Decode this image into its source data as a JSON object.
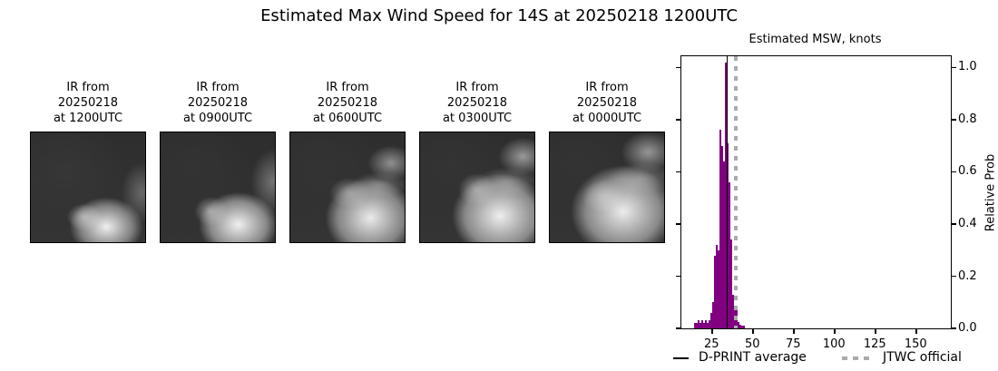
{
  "title": "Estimated Max Wind Speed for 14S at 20250218 1200UTC",
  "panels": [
    {
      "lines": [
        "IR from",
        "20250218",
        "at 1200UTC"
      ]
    },
    {
      "lines": [
        "IR from",
        "20250218",
        "at 0900UTC"
      ]
    },
    {
      "lines": [
        "IR from",
        "20250218",
        "at 0600UTC"
      ]
    },
    {
      "lines": [
        "IR from",
        "20250218",
        "at 0300UTC"
      ]
    },
    {
      "lines": [
        "IR from",
        "20250218",
        "at 0000UTC"
      ]
    }
  ],
  "chart_data": {
    "type": "bar",
    "title": "Estimated MSW, knots",
    "xlabel": "",
    "ylabel": "Relative Prob",
    "xlim": [
      6.5,
      171.5
    ],
    "ylim": [
      0,
      1.043
    ],
    "x_ticks": [
      25,
      50,
      75,
      100,
      125,
      150
    ],
    "y_ticks": [
      "0.0",
      "0.2",
      "0.4",
      "0.6",
      "0.8",
      "1.0"
    ],
    "grid": false,
    "legend_position": "below",
    "bar_color": "#800080",
    "bin_width": 1.1,
    "bins": [
      [
        14.5,
        0.02
      ],
      [
        15.6,
        0.02
      ],
      [
        16.7,
        0.03
      ],
      [
        17.8,
        0.02
      ],
      [
        18.9,
        0.03
      ],
      [
        20.0,
        0.02
      ],
      [
        21.1,
        0.03
      ],
      [
        22.2,
        0.02
      ],
      [
        23.3,
        0.03
      ],
      [
        24.4,
        0.06
      ],
      [
        25.5,
        0.1
      ],
      [
        26.6,
        0.28
      ],
      [
        27.7,
        0.32
      ],
      [
        28.8,
        0.3
      ],
      [
        29.9,
        0.76
      ],
      [
        31.0,
        0.7
      ],
      [
        32.1,
        0.64
      ],
      [
        33.2,
        1.02
      ],
      [
        34.3,
        0.71
      ],
      [
        35.4,
        0.56
      ],
      [
        36.5,
        0.34
      ],
      [
        37.6,
        0.13
      ],
      [
        38.7,
        0.075
      ],
      [
        39.8,
        0.07
      ],
      [
        40.9,
        0.025
      ],
      [
        42.0,
        0.015
      ],
      [
        43.1,
        0.012
      ],
      [
        44.2,
        0.01
      ]
    ],
    "vlines": [
      {
        "name": "D-PRINT average",
        "x": 34.5,
        "style": "solid",
        "color": "#000000",
        "width": 1.7
      },
      {
        "name": "JTWC official",
        "x": 40.0,
        "style": "dotted",
        "color": "#ababab",
        "width": 4
      }
    ],
    "legend": [
      {
        "label": "D-PRINT average",
        "swatch": "solid-line",
        "color": "#000000"
      },
      {
        "label": "JTWC official",
        "swatch": "dotted-line",
        "color": "#ababab"
      }
    ]
  }
}
